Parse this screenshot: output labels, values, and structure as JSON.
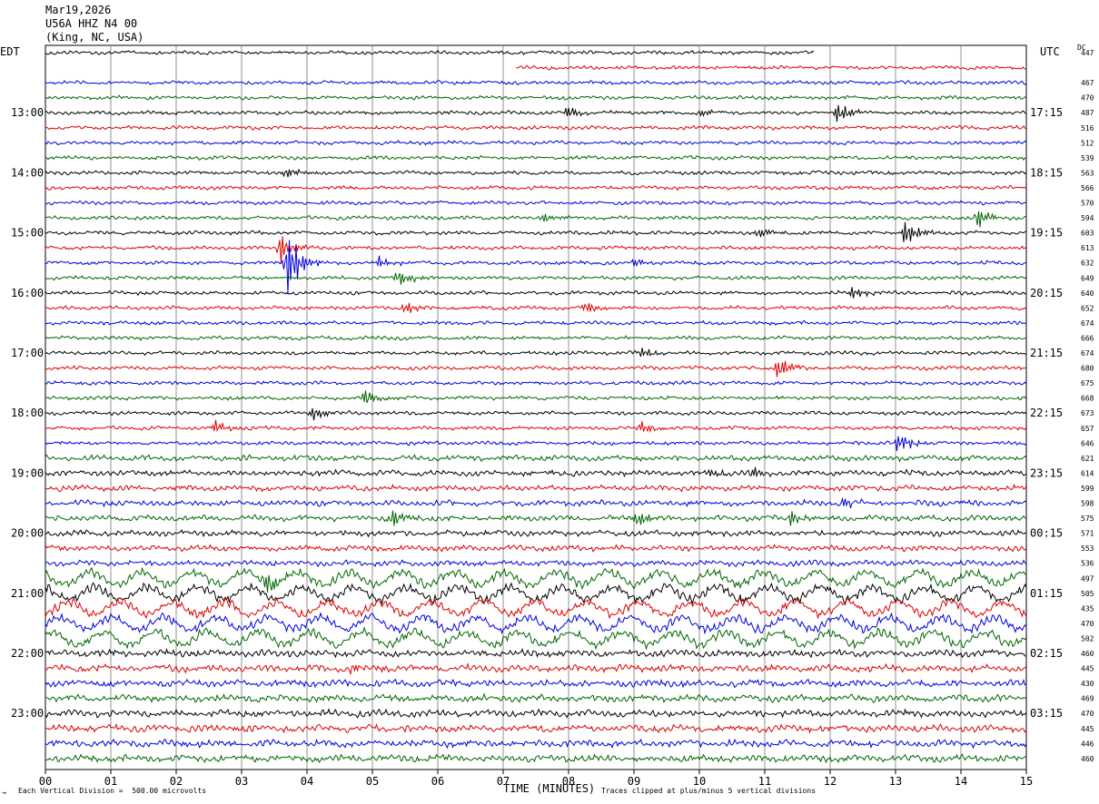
{
  "header": {
    "date": "Mar19,2026",
    "station": "U56A HHZ N4 00",
    "location": "(King, NC, USA)"
  },
  "axis": {
    "left_zone": "EDT",
    "right_zone": "UTC",
    "dc_label": "DC",
    "xlabel": "TIME (MINUTES)",
    "scale_note": "Each Vertical Division =  500.00 microvolts",
    "clip_note": "Traces clipped at plus/minus 5 vertical divisions"
  },
  "chart_data": {
    "type": "line",
    "title": "",
    "xlim": [
      0,
      15
    ],
    "x_ticks": [
      "00",
      "01",
      "02",
      "03",
      "04",
      "05",
      "06",
      "07",
      "08",
      "09",
      "10",
      "11",
      "12",
      "13",
      "14",
      "15"
    ],
    "left_hour_labels": [
      {
        "row": 4,
        "label": "13:00"
      },
      {
        "row": 8,
        "label": "14:00"
      },
      {
        "row": 12,
        "label": "15:00"
      },
      {
        "row": 16,
        "label": "16:00"
      },
      {
        "row": 20,
        "label": "17:00"
      },
      {
        "row": 24,
        "label": "18:00"
      },
      {
        "row": 28,
        "label": "19:00"
      },
      {
        "row": 32,
        "label": "20:00"
      },
      {
        "row": 36,
        "label": "21:00"
      },
      {
        "row": 40,
        "label": "22:00"
      },
      {
        "row": 44,
        "label": "23:00"
      }
    ],
    "right_hour_labels": [
      {
        "row": 4,
        "label": "17:15"
      },
      {
        "row": 8,
        "label": "18:15"
      },
      {
        "row": 12,
        "label": "19:15"
      },
      {
        "row": 16,
        "label": "20:15"
      },
      {
        "row": 20,
        "label": "21:15"
      },
      {
        "row": 24,
        "label": "22:15"
      },
      {
        "row": 28,
        "label": "23:15"
      },
      {
        "row": 32,
        "label": "00:15"
      },
      {
        "row": 36,
        "label": "01:15"
      },
      {
        "row": 40,
        "label": "02:15"
      },
      {
        "row": 44,
        "label": "03:15"
      }
    ],
    "trace_colors": [
      "#000000",
      "#dd0000",
      "#0000dd",
      "#006600"
    ],
    "dc_offsets": [
      447,
      null,
      467,
      470,
      487,
      516,
      512,
      539,
      563,
      566,
      570,
      594,
      603,
      613,
      632,
      649,
      640,
      652,
      674,
      666,
      674,
      680,
      675,
      668,
      673,
      657,
      646,
      621,
      614,
      599,
      598,
      575,
      571,
      553,
      536,
      497,
      505,
      435,
      470,
      502,
      460,
      445,
      430,
      469,
      470,
      445,
      446,
      460
    ],
    "traces": {
      "count": 48,
      "first_partial_end_minute": 11.75,
      "second_partial_start_minute": 7.2,
      "events": [
        {
          "row": 4,
          "minute": 12.1,
          "amp": 14
        },
        {
          "row": 4,
          "minute": 8.0,
          "amp": 6
        },
        {
          "row": 4,
          "minute": 10.0,
          "amp": 5
        },
        {
          "row": 8,
          "minute": 3.7,
          "amp": 8
        },
        {
          "row": 11,
          "minute": 14.25,
          "amp": 12
        },
        {
          "row": 11,
          "minute": 7.6,
          "amp": 5
        },
        {
          "row": 12,
          "minute": 13.15,
          "amp": 14
        },
        {
          "row": 12,
          "minute": 10.9,
          "amp": 6
        },
        {
          "row": 13,
          "minute": 3.6,
          "amp": 18
        },
        {
          "row": 14,
          "minute": 3.7,
          "amp": 40
        },
        {
          "row": 14,
          "minute": 5.1,
          "amp": 6
        },
        {
          "row": 14,
          "minute": 9.0,
          "amp": 5
        },
        {
          "row": 15,
          "minute": 5.4,
          "amp": 10
        },
        {
          "row": 16,
          "minute": 12.35,
          "amp": 6
        },
        {
          "row": 17,
          "minute": 5.5,
          "amp": 7
        },
        {
          "row": 17,
          "minute": 8.25,
          "amp": 6
        },
        {
          "row": 20,
          "minute": 9.1,
          "amp": 6
        },
        {
          "row": 21,
          "minute": 11.2,
          "amp": 12
        },
        {
          "row": 23,
          "minute": 4.9,
          "amp": 10
        },
        {
          "row": 24,
          "minute": 4.1,
          "amp": 9
        },
        {
          "row": 25,
          "minute": 2.6,
          "amp": 8
        },
        {
          "row": 25,
          "minute": 9.1,
          "amp": 7
        },
        {
          "row": 26,
          "minute": 13.05,
          "amp": 12
        },
        {
          "row": 28,
          "minute": 10.2,
          "amp": 6
        },
        {
          "row": 28,
          "minute": 10.8,
          "amp": 6
        },
        {
          "row": 30,
          "minute": 12.2,
          "amp": 7
        },
        {
          "row": 31,
          "minute": 5.3,
          "amp": 10
        },
        {
          "row": 31,
          "minute": 9.05,
          "amp": 9
        },
        {
          "row": 31,
          "minute": 11.4,
          "amp": 8
        },
        {
          "row": 35,
          "minute": 3.35,
          "amp": 12
        },
        {
          "row": 41,
          "minute": 4.7,
          "amp": 5
        }
      ]
    }
  }
}
